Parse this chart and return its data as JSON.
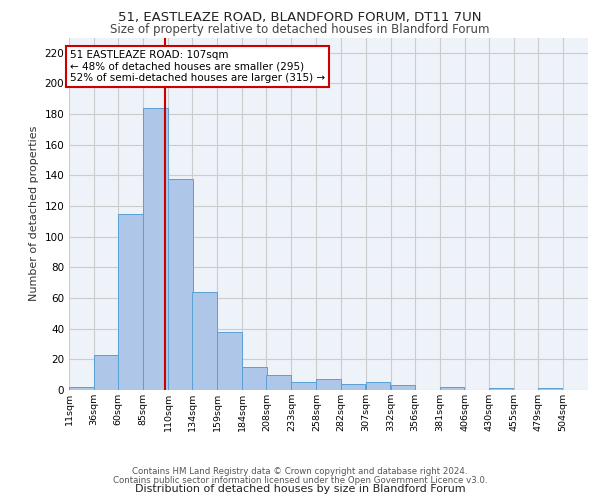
{
  "title_line1": "51, EASTLEAZE ROAD, BLANDFORD FORUM, DT11 7UN",
  "title_line2": "Size of property relative to detached houses in Blandford Forum",
  "xlabel": "Distribution of detached houses by size in Blandford Forum",
  "ylabel": "Number of detached properties",
  "footer_line1": "Contains HM Land Registry data © Crown copyright and database right 2024.",
  "footer_line2": "Contains public sector information licensed under the Open Government Licence v3.0.",
  "bar_labels": [
    "11sqm",
    "36sqm",
    "60sqm",
    "85sqm",
    "110sqm",
    "134sqm",
    "159sqm",
    "184sqm",
    "208sqm",
    "233sqm",
    "258sqm",
    "282sqm",
    "307sqm",
    "332sqm",
    "356sqm",
    "381sqm",
    "406sqm",
    "430sqm",
    "455sqm",
    "479sqm",
    "504sqm"
  ],
  "bar_values": [
    2,
    23,
    115,
    184,
    138,
    64,
    38,
    15,
    10,
    5,
    7,
    4,
    5,
    3,
    0,
    2,
    0,
    1,
    0,
    1,
    0
  ],
  "bar_color": "#aec6e8",
  "bar_edge_color": "#5a9fd4",
  "annotation_text": "51 EASTLEAZE ROAD: 107sqm\n← 48% of detached houses are smaller (295)\n52% of semi-detached houses are larger (315) →",
  "annotation_box_color": "#ffffff",
  "annotation_box_edge_color": "#cc0000",
  "vline_x": 107,
  "vline_color": "#cc0000",
  "ylim": [
    0,
    230
  ],
  "yticks": [
    0,
    20,
    40,
    60,
    80,
    100,
    120,
    140,
    160,
    180,
    200,
    220
  ],
  "grid_color": "#cccccc",
  "bg_color": "#eef2f9",
  "bin_width": 25
}
